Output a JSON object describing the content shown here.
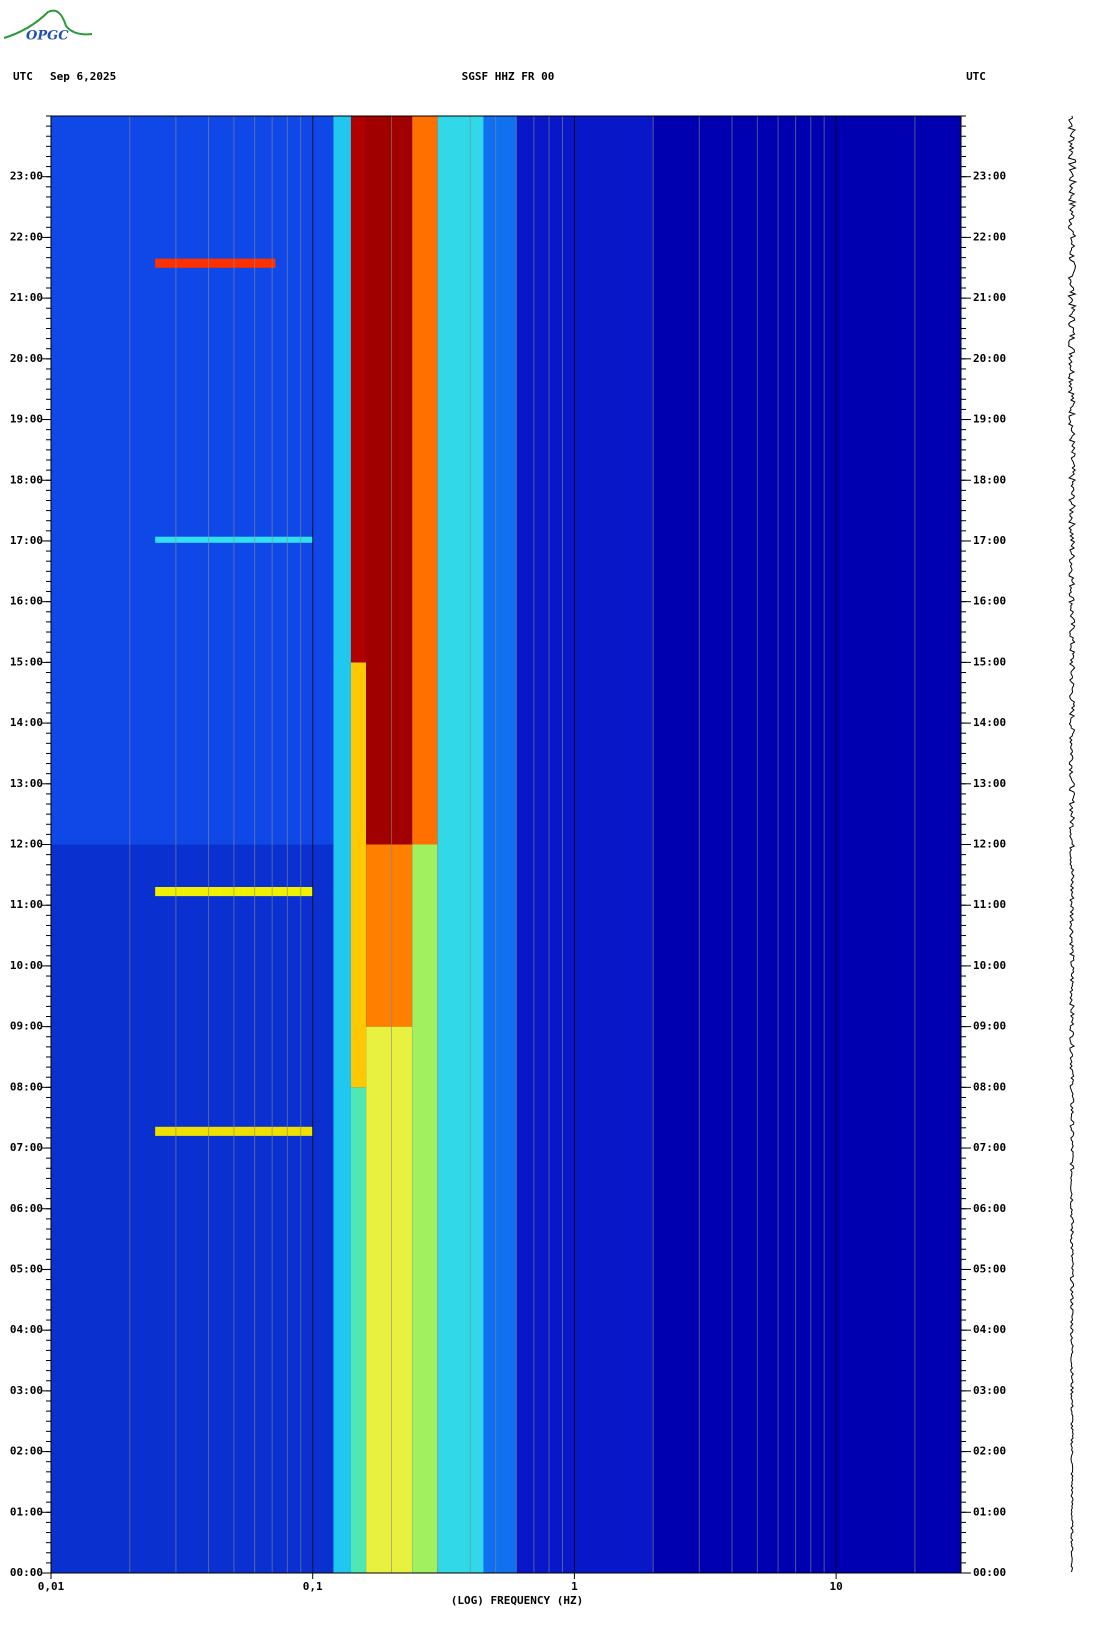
{
  "chart_data": {
    "type": "spectrogram",
    "logo": "OPGC",
    "time_zone": "UTC",
    "date": "Sep 6,2025",
    "title": "SGSF HHZ FR 00",
    "xlabel": "(LOG) FREQUENCY (HZ)",
    "xscale": "log",
    "xlim": [
      0.01,
      30
    ],
    "xticks": [
      {
        "value": 0.01,
        "label": "0,01"
      },
      {
        "value": 0.1,
        "label": "0,1"
      },
      1,
      10
    ],
    "grid": true,
    "background": "#0000b0",
    "ylim": [
      0,
      24
    ],
    "yticks": [
      {
        "value": 0,
        "label": "00:00"
      },
      {
        "value": 1,
        "label": "01:00"
      },
      {
        "value": 2,
        "label": "02:00"
      },
      {
        "value": 3,
        "label": "03:00"
      },
      {
        "value": 4,
        "label": "04:00"
      },
      {
        "value": 5,
        "label": "05:00"
      },
      {
        "value": 6,
        "label": "06:00"
      },
      {
        "value": 7,
        "label": "07:00"
      },
      {
        "value": 8,
        "label": "08:00"
      },
      {
        "value": 9,
        "label": "09:00"
      },
      {
        "value": 10,
        "label": "10:00"
      },
      {
        "value": 11,
        "label": "11:00"
      },
      {
        "value": 12,
        "label": "12:00"
      },
      {
        "value": 13,
        "label": "13:00"
      },
      {
        "value": 14,
        "label": "14:00"
      },
      {
        "value": 15,
        "label": "15:00"
      },
      {
        "value": 16,
        "label": "16:00"
      },
      {
        "value": 17,
        "label": "17:00"
      },
      {
        "value": 18,
        "label": "18:00"
      },
      {
        "value": 19,
        "label": "19:00"
      },
      {
        "value": 20,
        "label": "20:00"
      },
      {
        "value": 21,
        "label": "21:00"
      },
      {
        "value": 22,
        "label": "22:00"
      },
      {
        "value": 23,
        "label": "23:00"
      }
    ],
    "bands": [
      {
        "xlim": [
          0.01,
          0.12
        ],
        "ylim": [
          0,
          12
        ],
        "color": "#0a30d0"
      },
      {
        "xlim": [
          0.01,
          0.12
        ],
        "ylim": [
          12,
          24
        ],
        "color": "#1048e8"
      },
      {
        "xlim": [
          0.12,
          0.14
        ],
        "ylim": [
          0,
          24
        ],
        "color": "#20c8f0"
      },
      {
        "xlim": [
          0.14,
          0.16
        ],
        "ylim": [
          0,
          8
        ],
        "color": "#50e8b0"
      },
      {
        "xlim": [
          0.14,
          0.16
        ],
        "ylim": [
          8,
          15
        ],
        "color": "#ffc800"
      },
      {
        "xlim": [
          0.14,
          0.16
        ],
        "ylim": [
          15,
          24
        ],
        "color": "#b00000"
      },
      {
        "xlim": [
          0.16,
          0.24
        ],
        "ylim": [
          0,
          9
        ],
        "color": "#e8f040"
      },
      {
        "xlim": [
          0.16,
          0.24
        ],
        "ylim": [
          9,
          12
        ],
        "color": "#ff8000"
      },
      {
        "xlim": [
          0.16,
          0.24
        ],
        "ylim": [
          12,
          24
        ],
        "color": "#a00000"
      },
      {
        "xlim": [
          0.24,
          0.3
        ],
        "ylim": [
          0,
          12
        ],
        "color": "#a0f060"
      },
      {
        "xlim": [
          0.24,
          0.3
        ],
        "ylim": [
          12,
          24
        ],
        "color": "#ff7000"
      },
      {
        "xlim": [
          0.3,
          0.45
        ],
        "ylim": [
          0,
          24
        ],
        "color": "#30d8e8"
      },
      {
        "xlim": [
          0.45,
          0.6
        ],
        "ylim": [
          0,
          24
        ],
        "color": "#1070f0"
      },
      {
        "xlim": [
          0.6,
          2
        ],
        "ylim": [
          0,
          24
        ],
        "color": "#0818c8"
      }
    ],
    "events": [
      {
        "xlim": [
          0.025,
          0.072
        ],
        "ylim": [
          21.5,
          21.65
        ],
        "color": "#ff3000"
      },
      {
        "xlim": [
          0.025,
          0.1
        ],
        "ylim": [
          11.15,
          11.3
        ],
        "color": "#f0f000"
      },
      {
        "xlim": [
          0.025,
          0.1
        ],
        "ylim": [
          7.2,
          7.35
        ],
        "color": "#f0e000"
      },
      {
        "xlim": [
          0.025,
          0.1
        ],
        "ylim": [
          16.97,
          17.07
        ],
        "color": "#30e0f0"
      }
    ]
  }
}
